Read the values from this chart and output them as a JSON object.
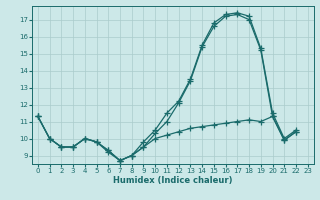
{
  "xlabel": "Humidex (Indice chaleur)",
  "background_color": "#cce8e8",
  "grid_color": "#aacccc",
  "line_color": "#1a6b6b",
  "xlim": [
    -0.5,
    23.5
  ],
  "ylim": [
    8.5,
    17.8
  ],
  "yticks": [
    9,
    10,
    11,
    12,
    13,
    14,
    15,
    16,
    17
  ],
  "xticks": [
    0,
    1,
    2,
    3,
    4,
    5,
    6,
    7,
    8,
    9,
    10,
    11,
    12,
    13,
    14,
    15,
    16,
    17,
    18,
    19,
    20,
    21,
    22,
    23
  ],
  "line1_x": [
    0,
    1,
    2,
    3,
    4,
    5,
    6,
    7,
    8,
    9,
    10,
    11,
    12,
    13,
    14,
    15,
    16,
    17,
    18,
    19,
    20,
    21,
    22
  ],
  "line1_y": [
    11.3,
    10.0,
    9.5,
    9.5,
    10.0,
    9.8,
    9.3,
    8.7,
    9.0,
    9.5,
    10.3,
    11.0,
    12.1,
    13.4,
    15.4,
    16.6,
    17.2,
    17.3,
    17.0,
    15.2,
    11.3,
    9.9,
    10.4
  ],
  "line2_x": [
    0,
    1,
    2,
    3,
    4,
    5,
    6,
    7,
    8,
    9,
    10,
    11,
    12,
    13,
    14,
    15,
    16,
    17,
    18,
    19,
    20,
    21,
    22
  ],
  "line2_y": [
    11.3,
    10.0,
    9.5,
    9.5,
    10.0,
    9.8,
    9.3,
    8.7,
    9.0,
    9.8,
    10.5,
    11.5,
    12.2,
    13.5,
    15.5,
    16.8,
    17.3,
    17.4,
    17.2,
    15.3,
    11.5,
    10.0,
    10.5
  ],
  "line3_x": [
    0,
    1,
    2,
    3,
    4,
    5,
    6,
    7,
    8,
    9,
    10,
    11,
    12,
    13,
    14,
    15,
    16,
    17,
    18,
    19,
    20,
    21,
    22
  ],
  "line3_y": [
    11.3,
    10.0,
    9.5,
    9.5,
    10.0,
    9.8,
    9.2,
    8.7,
    9.0,
    9.5,
    10.0,
    10.2,
    10.4,
    10.6,
    10.7,
    10.8,
    10.9,
    11.0,
    11.1,
    11.0,
    11.3,
    9.9,
    10.4
  ]
}
